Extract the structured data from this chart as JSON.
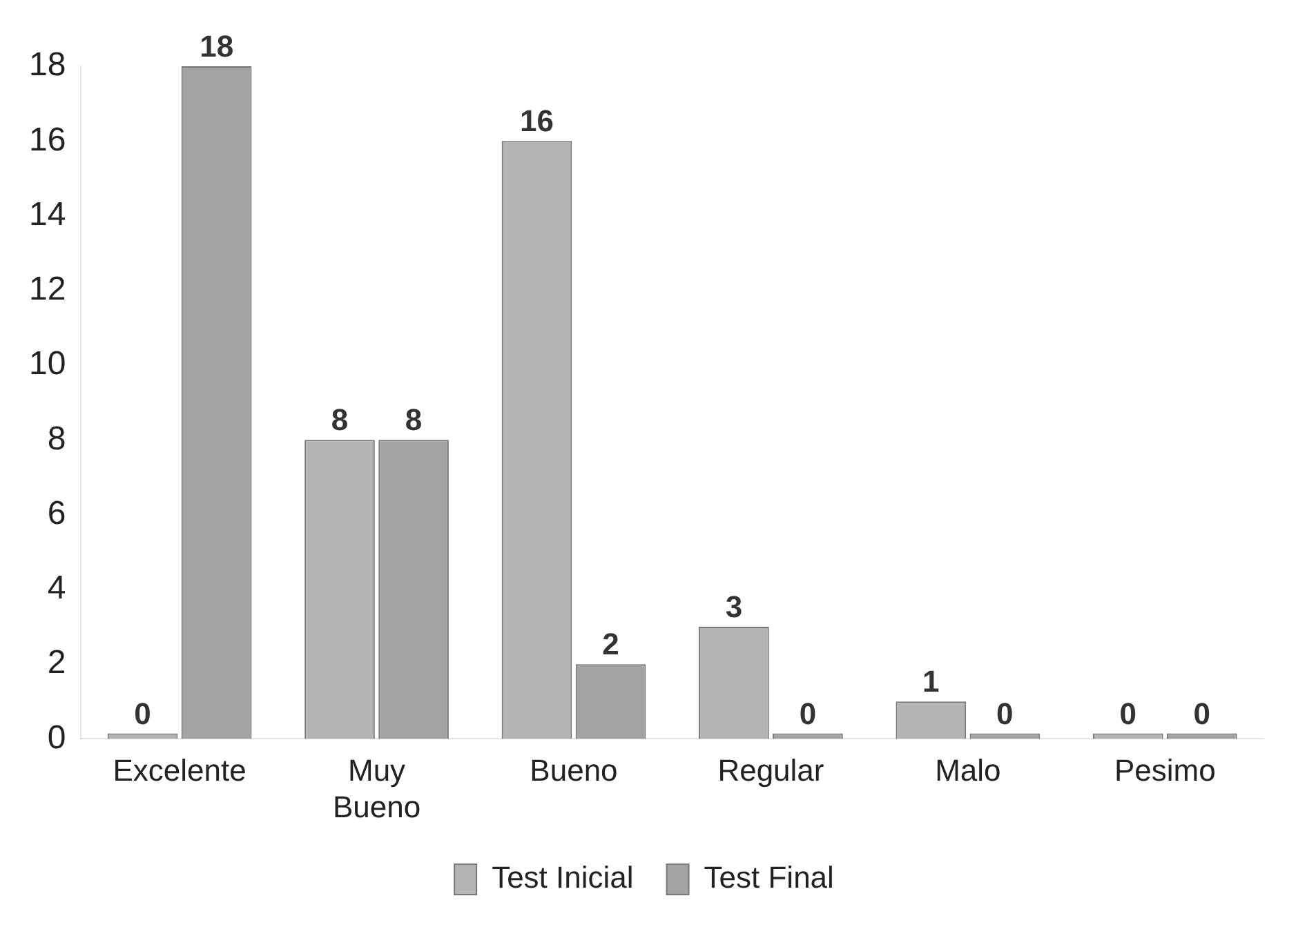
{
  "chart_data": {
    "type": "bar",
    "categories": [
      "Excelente",
      "Muy Bueno",
      "Bueno",
      "Regular",
      "Malo",
      "Pesimo"
    ],
    "series": [
      {
        "name": "Test Inicial",
        "color": "#b4b4b4",
        "values": [
          0,
          8,
          16,
          3,
          1,
          0
        ]
      },
      {
        "name": "Test Final",
        "color": "#a3a3a3",
        "values": [
          18,
          8,
          2,
          0,
          0,
          0
        ]
      }
    ],
    "ylim": [
      0,
      18
    ],
    "yticks": [
      0,
      2,
      4,
      6,
      8,
      10,
      12,
      14,
      16,
      18
    ],
    "grid": false,
    "legend": "bottom",
    "data_labels": true
  }
}
